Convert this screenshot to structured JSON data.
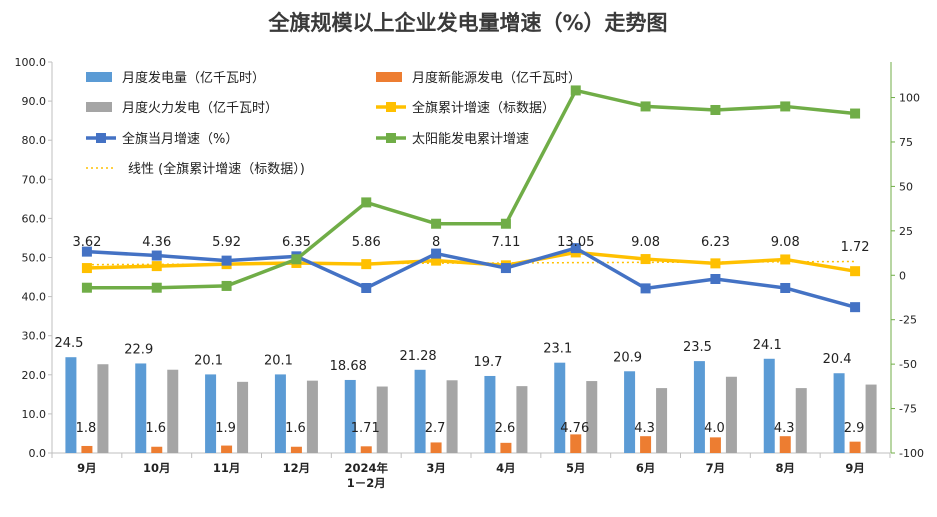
{
  "chart_data": {
    "title": "全旗规模以上企业发电量增速（%）走势图",
    "categories": [
      "9月",
      "10月",
      "11月",
      "12月",
      "2024年\n1－2月",
      "3月",
      "4月",
      "5月",
      "6月",
      "7月",
      "8月",
      "9月"
    ],
    "left_axis": {
      "min": 0,
      "max": 100,
      "ticks": [
        "0.0",
        "10.0",
        "20.0",
        "30.0",
        "40.0",
        "50.0",
        "60.0",
        "70.0",
        "80.0",
        "90.0",
        "100.0"
      ]
    },
    "right_axis": {
      "min": -100,
      "max": 120,
      "ticks": [
        "-100",
        "-75",
        "-50",
        "-25",
        "0",
        "25",
        "50",
        "75",
        "100"
      ]
    },
    "series": [
      {
        "name": "月度发电量（亿千瓦时）",
        "type": "bar",
        "axis": "left",
        "color": "#5B9BD5",
        "values": [
          24.5,
          22.9,
          20.1,
          20.1,
          18.68,
          21.28,
          19.7,
          23.1,
          20.9,
          23.5,
          24.1,
          20.4
        ],
        "labels": [
          "24.5",
          "22.9",
          "20.1",
          "20.1",
          "18.68",
          "21.28",
          "19.7",
          "23.1",
          "20.9",
          "23.5",
          "24.1",
          "20.4"
        ]
      },
      {
        "name": "月度新能源发电（亿千瓦时）",
        "type": "bar",
        "axis": "left",
        "color": "#ED7D31",
        "values": [
          1.8,
          1.6,
          1.9,
          1.6,
          1.71,
          2.7,
          2.6,
          4.76,
          4.3,
          4.0,
          4.3,
          2.9
        ],
        "labels": [
          "1.8",
          "1.6",
          "1.9",
          "1.6",
          "1.71",
          "2.7",
          "2.6",
          "4.76",
          "4.3",
          "4.0",
          "4.3",
          "2.9"
        ]
      },
      {
        "name": "月度火力发电（亿千瓦时）",
        "type": "bar",
        "axis": "left",
        "color": "#A5A5A5",
        "values": [
          22.7,
          21.3,
          18.2,
          18.5,
          17.0,
          18.6,
          17.1,
          18.4,
          16.6,
          19.5,
          16.6,
          17.5
        ]
      },
      {
        "name": "全旗累计增速（标数据）",
        "type": "line",
        "axis": "left",
        "color": "#FFC000",
        "values": [
          47.3,
          47.8,
          48.3,
          48.6,
          48.3,
          49.2,
          48.0,
          51.3,
          49.6,
          48.5,
          49.5,
          46.5
        ]
      },
      {
        "name": "全旗当月增速（%）",
        "type": "line",
        "axis": "left",
        "color": "#4472C4",
        "values": [
          51.5,
          50.5,
          49.2,
          50.3,
          42.2,
          51.0,
          47.3,
          52.4,
          42.1,
          44.5,
          42.2,
          37.3
        ],
        "labels": [
          "3.62",
          "4.36",
          "5.92",
          "6.35",
          "5.86",
          "8",
          "7.11",
          "13.05",
          "9.08",
          "6.23",
          "9.08",
          "1.72"
        ]
      },
      {
        "name": "太阳能发电累计增速",
        "type": "line",
        "axis": "right",
        "color": "#70AD47",
        "values": [
          -7,
          -7,
          -6,
          9,
          41,
          29,
          29,
          104,
          95,
          93,
          95,
          91
        ]
      },
      {
        "name": "线性 (全旗累计增速（标数据）)",
        "type": "trendline",
        "axis": "left",
        "color": "#FFC000"
      }
    ],
    "grid": false,
    "legend": "top-left"
  }
}
